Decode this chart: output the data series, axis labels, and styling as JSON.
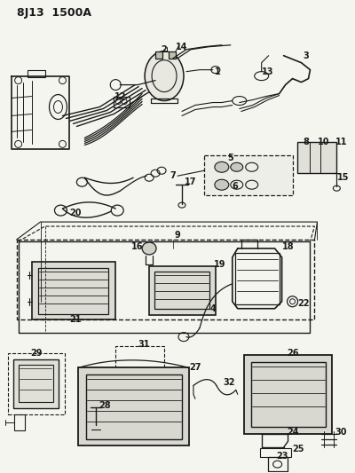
{
  "title": "8J13  1500A",
  "background_color": "#f5f5f0",
  "line_color": "#1a1a1a",
  "fig_width": 4.0,
  "fig_height": 5.33,
  "dpi": 100,
  "top_section": {
    "y_range": [
      0.55,
      1.0
    ]
  },
  "mid_section": {
    "y_range": [
      0.38,
      0.57
    ]
  },
  "bot_section": {
    "y_range": [
      0.0,
      0.38
    ]
  }
}
